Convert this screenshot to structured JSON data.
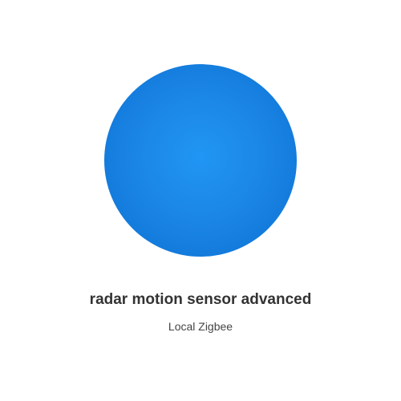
{
  "device": {
    "name": "radar motion sensor advanced",
    "integration": "Local Zigbee",
    "image_color": "#1e88e5"
  }
}
